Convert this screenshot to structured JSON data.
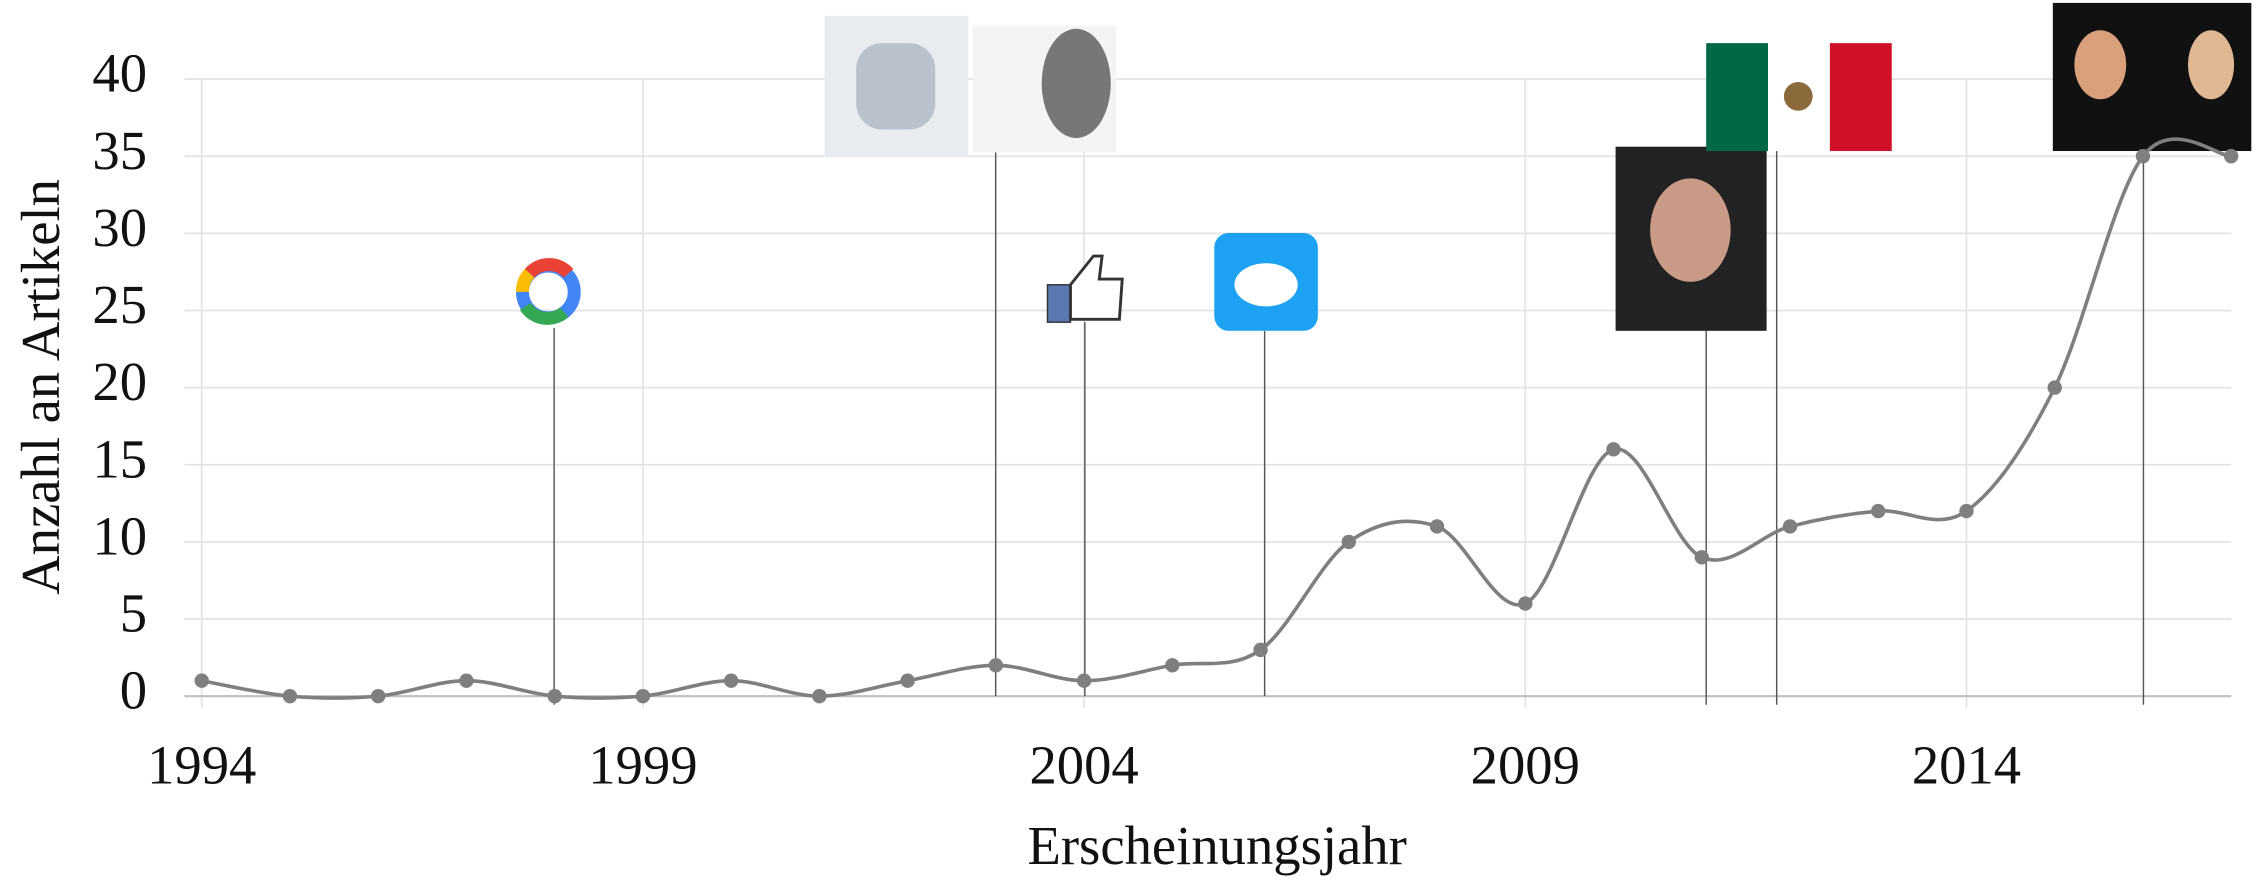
{
  "chart_data": {
    "type": "line",
    "x_label": "Erscheinungsjahr",
    "y_label": "Anzahl an Artikeln",
    "x": [
      1994,
      1995,
      1996,
      1997,
      1998,
      1999,
      2000,
      2001,
      2002,
      2003,
      2004,
      2005,
      2006,
      2007,
      2008,
      2009,
      2010,
      2011,
      2012,
      2013,
      2014,
      2015,
      2016,
      2017
    ],
    "values": [
      1,
      0,
      0,
      1,
      0,
      0,
      1,
      0,
      1,
      2,
      1,
      2,
      3,
      10,
      11,
      6,
      16,
      9,
      11,
      12,
      12,
      20,
      35,
      35
    ],
    "color": "#7f7f7f",
    "xlim": [
      1994,
      2017
    ],
    "xticks": [
      1994,
      1999,
      2004,
      2009,
      2014
    ],
    "ylim": [
      0,
      40
    ],
    "yticks": [
      0,
      5,
      10,
      15,
      20,
      25,
      30,
      35,
      40
    ],
    "grid": true
  }
}
